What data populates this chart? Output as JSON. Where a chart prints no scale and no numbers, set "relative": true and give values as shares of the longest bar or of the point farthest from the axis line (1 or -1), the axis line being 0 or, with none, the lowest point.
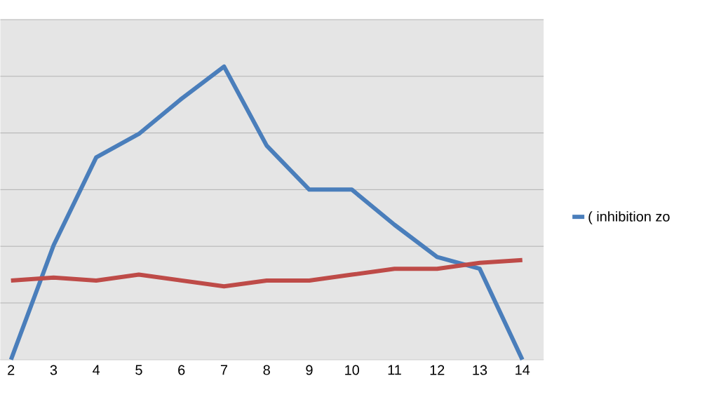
{
  "chart_data": {
    "type": "line",
    "relative": true,
    "grid": true,
    "legend": "right",
    "categories": [
      "2",
      "3",
      "4",
      "5",
      "6",
      "7",
      "8",
      "9",
      "10",
      "11",
      "12",
      "13",
      "14"
    ],
    "series": [
      {
        "name": "( inhibition zo",
        "color": "#4a7ebb",
        "values": [
          0,
          0.39,
          0.69,
          0.77,
          0.89,
          1,
          0.73,
          0.58,
          0.58,
          0.46,
          0.35,
          0.31,
          0
        ]
      },
      {
        "color": "#be4b48",
        "values": [
          0.27,
          0.28,
          0.27,
          0.29,
          0.27,
          0.25,
          0.27,
          0.27,
          0.29,
          0.31,
          0.31,
          0.33,
          0.34
        ]
      }
    ]
  }
}
